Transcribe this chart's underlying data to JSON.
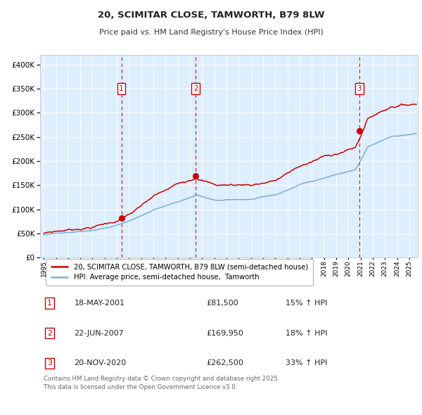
{
  "title": "20, SCIMITAR CLOSE, TAMWORTH, B79 8LW",
  "subtitle": "Price paid vs. HM Land Registry's House Price Index (HPI)",
  "legend_line1": "20, SCIMITAR CLOSE, TAMWORTH, B79 8LW (semi-detached house)",
  "legend_line2": "HPI: Average price, semi-detached house,  Tamworth",
  "footnote": "Contains HM Land Registry data © Crown copyright and database right 2025.\nThis data is licensed under the Open Government Licence v3.0.",
  "sale_color": "#cc0000",
  "hpi_color": "#7aafd4",
  "bg_color": "#ddeeff",
  "grid_color": "#ffffff",
  "vline_color": "#cc0000",
  "marker_color": "#cc0000",
  "ylim": [
    0,
    420000
  ],
  "yticks": [
    0,
    50000,
    100000,
    150000,
    200000,
    250000,
    300000,
    350000,
    400000
  ],
  "xlim_start": 1994.7,
  "xlim_end": 2025.7,
  "purchases": [
    {
      "label": "1",
      "date_num": 2001.37,
      "price": 81500,
      "hpi_pct": 15
    },
    {
      "label": "2",
      "date_num": 2007.47,
      "price": 169950,
      "hpi_pct": 18
    },
    {
      "label": "3",
      "date_num": 2020.89,
      "price": 262500,
      "hpi_pct": 33
    }
  ],
  "purchase_dates": [
    "18-MAY-2001",
    "22-JUN-2007",
    "20-NOV-2020"
  ],
  "purchase_prices": [
    "£81,500",
    "£169,950",
    "£262,500"
  ],
  "purchase_hpi": [
    "15% ↑ HPI",
    "18% ↑ HPI",
    "33% ↑ HPI"
  ]
}
